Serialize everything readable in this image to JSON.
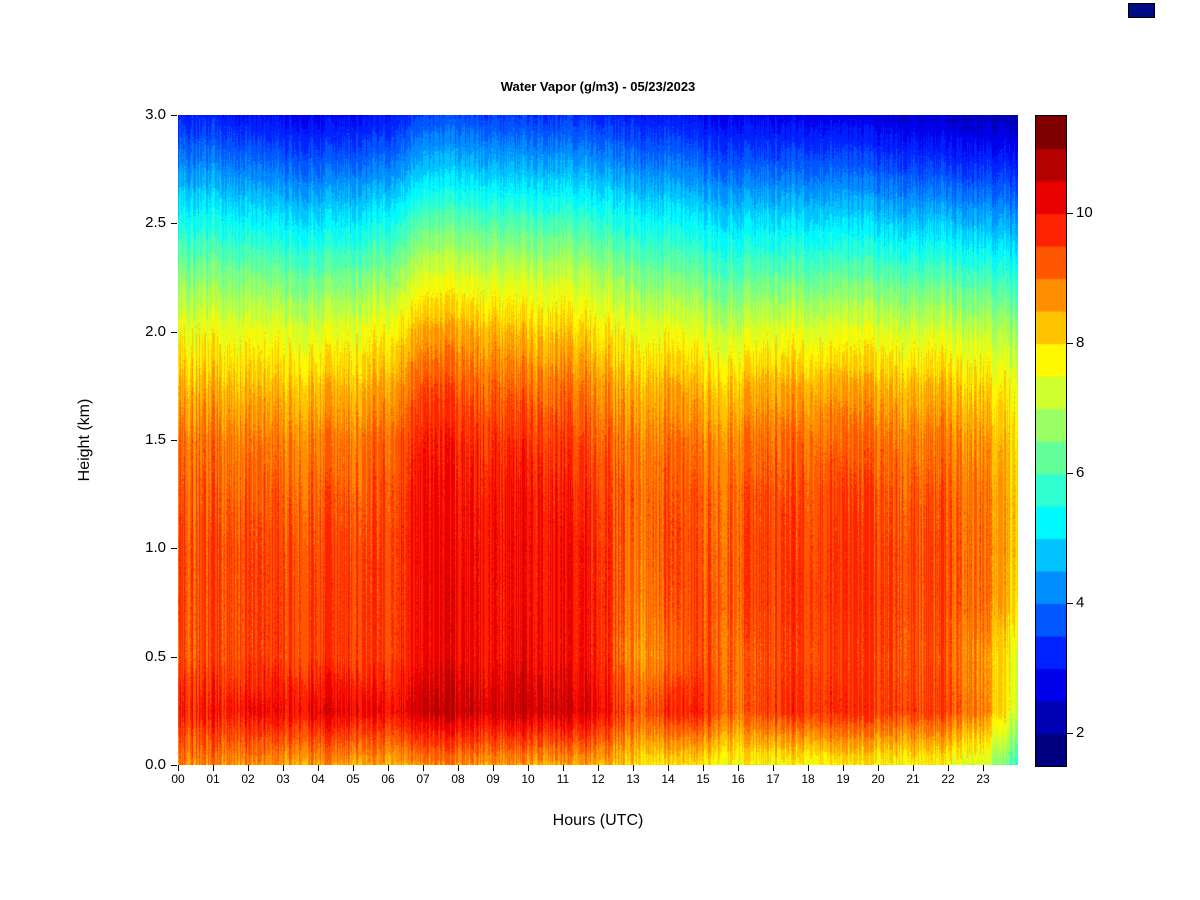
{
  "page": {
    "background": "#ffffff"
  },
  "decor": {
    "corner_swatch_color": "#000b86"
  },
  "chart_data": {
    "type": "heatmap",
    "title": "Water Vapor (g/m3) - 05/23/2023",
    "xlabel": "Hours (UTC)",
    "ylabel": "Height (km)",
    "x_tick_labels": [
      "00",
      "01",
      "02",
      "03",
      "04",
      "05",
      "06",
      "07",
      "08",
      "09",
      "10",
      "11",
      "12",
      "13",
      "14",
      "15",
      "16",
      "17",
      "18",
      "19",
      "20",
      "21",
      "22",
      "23"
    ],
    "y_tick_labels": [
      "0.0",
      "0.5",
      "1.0",
      "1.5",
      "2.0",
      "2.5",
      "3.0"
    ],
    "y_tick_values": [
      0.0,
      0.5,
      1.0,
      1.5,
      2.0,
      2.5,
      3.0
    ],
    "x_range": [
      0,
      24
    ],
    "y_range": [
      0,
      3
    ],
    "grid_on": false,
    "colorbar": {
      "colormap": "jet",
      "vmin": 1.5,
      "vmax": 11.5,
      "band_step": 0.5,
      "tick_values": [
        2,
        4,
        6,
        8,
        10
      ],
      "position": "right"
    },
    "noise": {
      "seed": 123456789,
      "striation_amplitude": 1.0,
      "speckle_amplitude": 0.25
    },
    "grid": {
      "hours": [
        0,
        1,
        2,
        3,
        4,
        5,
        6,
        7,
        8,
        9,
        10,
        11,
        12,
        13,
        14,
        15,
        16,
        17,
        18,
        19,
        20,
        21,
        22,
        23,
        24
      ],
      "heights": [
        0.0,
        0.25,
        0.5,
        0.75,
        1.0,
        1.25,
        1.5,
        1.75,
        2.0,
        2.25,
        2.5,
        2.75,
        3.0
      ],
      "values": [
        [
          8.8,
          8.8,
          8.7,
          8.6,
          8.6,
          8.5,
          8.5,
          8.6,
          8.7,
          8.6,
          8.5,
          8.5,
          8.5,
          8.0,
          7.9,
          7.9,
          7.6,
          7.7,
          7.7,
          7.7,
          7.7,
          7.7,
          7.6,
          7.2,
          5.8
        ],
        [
          9.8,
          9.9,
          10.0,
          10.1,
          10.2,
          10.2,
          10.1,
          10.4,
          10.5,
          10.4,
          10.5,
          10.4,
          10.3,
          9.2,
          9.7,
          9.8,
          9.0,
          9.6,
          9.7,
          9.6,
          9.5,
          9.5,
          9.4,
          8.8,
          7.2
        ],
        [
          9.3,
          9.4,
          9.4,
          9.5,
          9.5,
          9.5,
          9.5,
          10.0,
          10.1,
          10.0,
          10.1,
          10.0,
          9.9,
          8.6,
          9.0,
          9.4,
          9.0,
          9.4,
          9.5,
          9.4,
          9.4,
          9.3,
          9.2,
          8.6,
          7.4
        ],
        [
          9.4,
          9.4,
          9.4,
          9.5,
          9.5,
          9.5,
          9.5,
          10.0,
          10.1,
          10.0,
          10.0,
          10.0,
          9.9,
          8.8,
          9.3,
          9.4,
          9.2,
          9.5,
          9.6,
          9.5,
          9.5,
          9.4,
          9.3,
          9.0,
          8.0
        ],
        [
          9.4,
          9.4,
          9.4,
          9.4,
          9.4,
          9.4,
          9.5,
          10.0,
          10.0,
          10.0,
          10.0,
          10.0,
          9.8,
          8.9,
          9.4,
          9.3,
          9.2,
          9.5,
          9.5,
          9.5,
          9.4,
          9.4,
          9.3,
          9.0,
          8.2
        ],
        [
          9.2,
          9.2,
          9.2,
          9.2,
          9.2,
          9.2,
          9.4,
          9.9,
          9.9,
          9.9,
          9.9,
          9.8,
          9.6,
          9.0,
          9.3,
          9.2,
          9.1,
          9.4,
          9.4,
          9.3,
          9.3,
          9.2,
          9.2,
          8.9,
          8.2
        ],
        [
          9.0,
          9.0,
          8.9,
          8.9,
          8.9,
          8.9,
          9.2,
          9.7,
          9.7,
          9.6,
          9.6,
          9.5,
          9.3,
          8.8,
          9.0,
          8.9,
          8.8,
          9.1,
          9.1,
          9.0,
          9.0,
          8.9,
          8.9,
          8.6,
          8.0
        ],
        [
          8.4,
          8.4,
          8.3,
          8.3,
          8.3,
          8.3,
          8.6,
          9.2,
          9.2,
          9.1,
          9.0,
          9.0,
          8.8,
          8.3,
          8.5,
          8.3,
          8.2,
          8.5,
          8.5,
          8.4,
          8.4,
          8.3,
          8.3,
          8.0,
          7.6
        ],
        [
          7.6,
          7.6,
          7.5,
          7.5,
          7.4,
          7.5,
          7.8,
          8.4,
          8.5,
          8.4,
          8.2,
          8.2,
          8.0,
          7.5,
          7.6,
          7.4,
          7.2,
          7.5,
          7.5,
          7.4,
          7.4,
          7.3,
          7.3,
          7.1,
          6.8
        ],
        [
          6.6,
          6.6,
          6.5,
          6.4,
          6.3,
          6.4,
          6.7,
          7.3,
          7.4,
          7.3,
          7.2,
          7.2,
          7.0,
          6.5,
          6.5,
          6.3,
          6.1,
          6.3,
          6.3,
          6.2,
          6.2,
          6.1,
          6.1,
          5.9,
          5.7
        ],
        [
          5.5,
          5.5,
          5.3,
          5.2,
          5.1,
          5.2,
          5.5,
          6.1,
          6.2,
          6.1,
          6.0,
          6.0,
          5.8,
          5.4,
          5.4,
          5.2,
          5.0,
          5.1,
          5.1,
          5.0,
          4.9,
          4.8,
          4.8,
          4.6,
          4.5
        ],
        [
          4.3,
          4.3,
          4.1,
          4.0,
          3.9,
          4.0,
          4.2,
          4.7,
          4.8,
          4.7,
          4.6,
          4.6,
          4.5,
          4.2,
          4.2,
          4.0,
          3.8,
          3.9,
          3.9,
          3.8,
          3.7,
          3.6,
          3.5,
          3.4,
          3.3
        ],
        [
          3.2,
          3.2,
          3.0,
          2.9,
          2.8,
          2.9,
          3.1,
          3.5,
          3.6,
          3.5,
          3.4,
          3.4,
          3.3,
          3.1,
          3.1,
          2.9,
          2.8,
          2.8,
          2.8,
          2.7,
          2.6,
          2.5,
          2.4,
          2.3,
          2.2
        ]
      ]
    }
  }
}
